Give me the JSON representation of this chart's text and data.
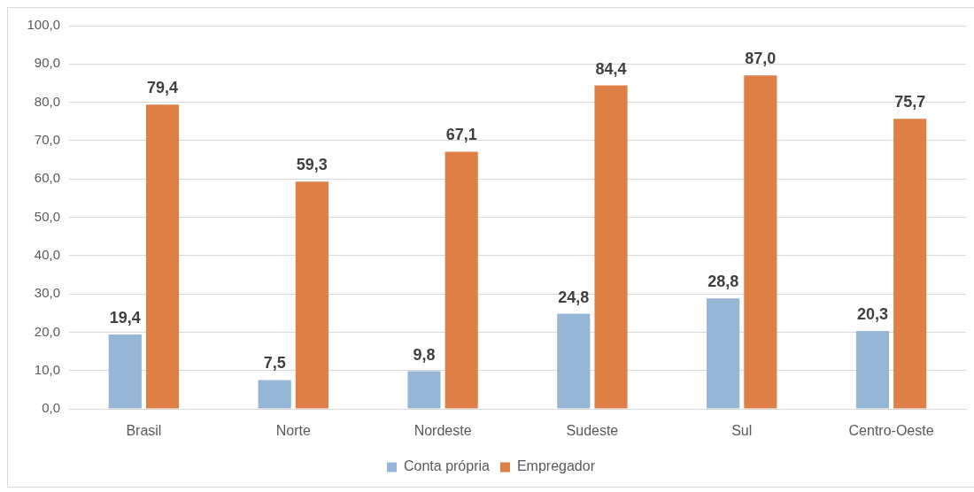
{
  "chart_data": {
    "type": "bar",
    "categories": [
      "Brasil",
      "Norte",
      "Nordeste",
      "Sudeste",
      "Sul",
      "Centro-Oeste"
    ],
    "series": [
      {
        "name": "Conta própria",
        "color": "#95b6d5",
        "values": [
          19.4,
          7.5,
          9.8,
          24.8,
          28.8,
          20.3
        ],
        "value_labels": [
          "19,4",
          "7,5",
          "9,8",
          "24,8",
          "28,8",
          "20,3"
        ]
      },
      {
        "name": "Empregador",
        "color": "#de7f46",
        "values": [
          79.4,
          59.3,
          67.1,
          84.4,
          87.0,
          75.7
        ],
        "value_labels": [
          "79,4",
          "59,3",
          "67,1",
          "84,4",
          "87,0",
          "75,7"
        ]
      }
    ],
    "ylim": [
      0,
      100
    ],
    "yticks": [
      {
        "value": 0,
        "label": "0,0"
      },
      {
        "value": 10,
        "label": "10,0"
      },
      {
        "value": 20,
        "label": "20,0"
      },
      {
        "value": 30,
        "label": "30,0"
      },
      {
        "value": 40,
        "label": "40,0"
      },
      {
        "value": 50,
        "label": "50,0"
      },
      {
        "value": 60,
        "label": "60,0"
      },
      {
        "value": 70,
        "label": "70,0"
      },
      {
        "value": 80,
        "label": "80,0"
      },
      {
        "value": 90,
        "label": "90,0"
      },
      {
        "value": 100,
        "label": "100,0"
      }
    ],
    "grid": "y",
    "legend": "bottom"
  }
}
